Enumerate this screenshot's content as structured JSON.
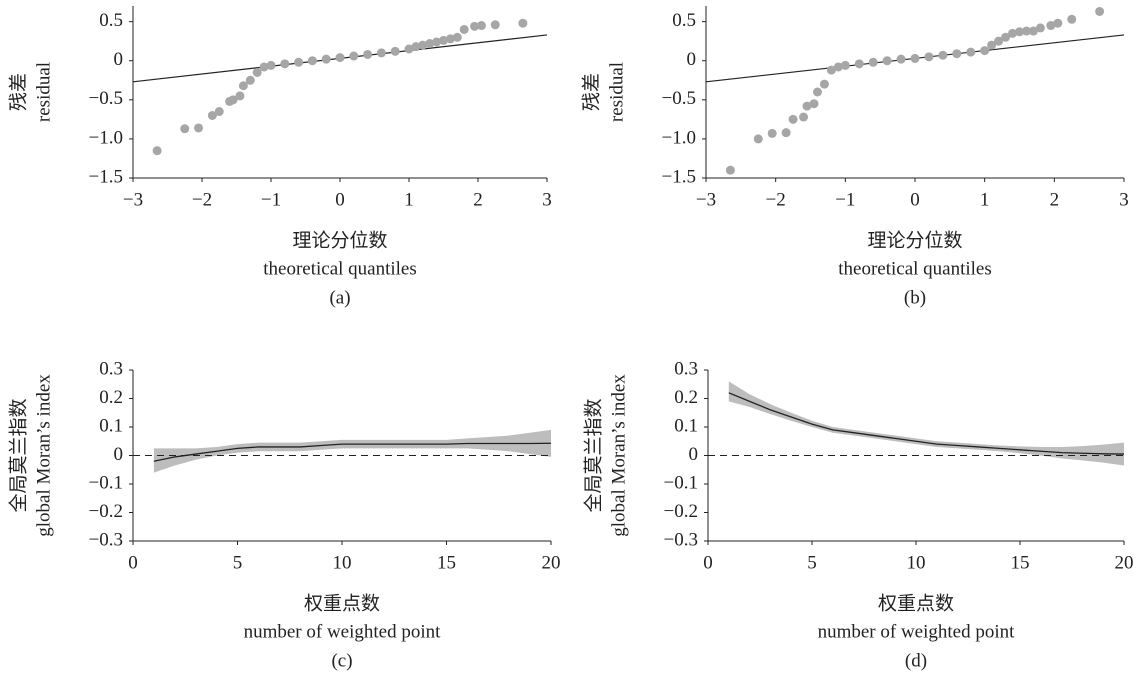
{
  "chart_data": [
    {
      "type": "scatter",
      "caption": "(a)",
      "y_label": [
        "残差",
        "residual"
      ],
      "x_label": [
        "理论分位数",
        "theoretical quantiles"
      ],
      "xlim": [
        -3,
        3
      ],
      "xticks": [
        {
          "value": -3,
          "label": "−3"
        },
        {
          "value": -2,
          "label": "−2"
        },
        {
          "value": -1,
          "label": "−1"
        },
        0,
        1,
        2,
        3
      ],
      "ylim": [
        -1.5,
        0.7
      ],
      "yticks": [
        0.5,
        0,
        {
          "value": -0.5,
          "label": "−0.5"
        },
        {
          "value": -1,
          "label": "−1.0"
        },
        {
          "value": -1.5,
          "label": "−1.5"
        }
      ],
      "color": "#a6a6a6",
      "line_color": "#222222",
      "x": [
        -2.65,
        -2.25,
        -2.05,
        -1.85,
        -1.75,
        -1.6,
        -1.55,
        -1.45,
        -1.4,
        -1.3,
        -1.2,
        -1.1,
        -1.0,
        -0.8,
        -0.6,
        -0.4,
        -0.2,
        0,
        0.2,
        0.4,
        0.6,
        0.8,
        1.0,
        1.1,
        1.2,
        1.3,
        1.4,
        1.5,
        1.6,
        1.7,
        1.8,
        1.95,
        2.05,
        2.25,
        2.65
      ],
      "values": [
        -1.15,
        -0.87,
        -0.86,
        -0.7,
        -0.65,
        -0.52,
        -0.5,
        -0.45,
        -0.32,
        -0.25,
        -0.15,
        -0.08,
        -0.06,
        -0.04,
        -0.02,
        0,
        0.02,
        0.04,
        0.06,
        0.08,
        0.1,
        0.12,
        0.15,
        0.18,
        0.2,
        0.22,
        0.24,
        0.26,
        0.28,
        0.3,
        0.4,
        0.44,
        0.45,
        0.46,
        0.48
      ],
      "reference_line": {
        "x": [
          -3,
          3
        ],
        "values": [
          -0.27,
          0.33
        ]
      }
    },
    {
      "type": "scatter",
      "caption": "(b)",
      "y_label": [
        "残差",
        "residual"
      ],
      "x_label": [
        "理论分位数",
        "theoretical quantiles"
      ],
      "xlim": [
        -3,
        3
      ],
      "xticks": [
        {
          "value": -3,
          "label": "−3"
        },
        {
          "value": -2,
          "label": "−2"
        },
        {
          "value": -1,
          "label": "−1"
        },
        0,
        1,
        2,
        3
      ],
      "ylim": [
        -1.5,
        0.7
      ],
      "yticks": [
        0.5,
        0,
        {
          "value": -0.5,
          "label": "−0.5"
        },
        {
          "value": -1,
          "label": "−1.0"
        },
        {
          "value": -1.5,
          "label": "−1.5"
        }
      ],
      "color": "#a6a6a6",
      "line_color": "#222222",
      "x": [
        -2.65,
        -2.25,
        -2.05,
        -1.85,
        -1.75,
        -1.6,
        -1.55,
        -1.45,
        -1.4,
        -1.3,
        -1.2,
        -1.1,
        -1.0,
        -0.8,
        -0.6,
        -0.4,
        -0.2,
        0,
        0.2,
        0.4,
        0.6,
        0.8,
        1.0,
        1.1,
        1.2,
        1.3,
        1.4,
        1.5,
        1.6,
        1.7,
        1.8,
        1.95,
        2.05,
        2.25,
        2.65
      ],
      "values": [
        -1.4,
        -1.0,
        -0.93,
        -0.92,
        -0.75,
        -0.72,
        -0.58,
        -0.55,
        -0.4,
        -0.3,
        -0.12,
        -0.08,
        -0.06,
        -0.04,
        -0.02,
        0,
        0.02,
        0.03,
        0.05,
        0.07,
        0.09,
        0.11,
        0.13,
        0.2,
        0.25,
        0.3,
        0.35,
        0.37,
        0.38,
        0.38,
        0.42,
        0.45,
        0.48,
        0.53,
        0.63
      ],
      "reference_line": {
        "x": [
          -3,
          3
        ],
        "values": [
          -0.27,
          0.33
        ]
      }
    },
    {
      "type": "line",
      "caption": "(c)",
      "y_label": [
        "全局莫兰指数",
        "global Moran’s index"
      ],
      "x_label": [
        "权重点数",
        "number of weighted point"
      ],
      "xlim": [
        0,
        20
      ],
      "xticks": [
        0,
        5,
        10,
        15,
        20
      ],
      "ylim": [
        -0.3,
        0.3
      ],
      "yticks": [
        0.3,
        0.2,
        0.1,
        0,
        {
          "value": -0.1,
          "label": "−0.1"
        },
        {
          "value": -0.2,
          "label": "−0.2"
        },
        {
          "value": -0.3,
          "label": "−0.3"
        }
      ],
      "color": "#222222",
      "band_color": "#bdbdbd",
      "reference_line": {
        "y": 0
      },
      "x": [
        1,
        2,
        3,
        4,
        5,
        6,
        7,
        8,
        9,
        10,
        11,
        12,
        13,
        14,
        15,
        16,
        17,
        18,
        19,
        20
      ],
      "values": [
        -0.02,
        -0.005,
        0.005,
        0.015,
        0.025,
        0.03,
        0.03,
        0.03,
        0.035,
        0.04,
        0.04,
        0.04,
        0.04,
        0.04,
        0.04,
        0.042,
        0.042,
        0.042,
        0.042,
        0.043
      ],
      "lower": [
        -0.06,
        -0.035,
        -0.015,
        0.0,
        0.01,
        0.015,
        0.015,
        0.015,
        0.02,
        0.025,
        0.025,
        0.025,
        0.025,
        0.025,
        0.025,
        0.025,
        0.02,
        0.015,
        0.005,
        -0.005
      ],
      "upper": [
        0.025,
        0.025,
        0.025,
        0.03,
        0.04,
        0.045,
        0.045,
        0.045,
        0.05,
        0.055,
        0.055,
        0.055,
        0.055,
        0.055,
        0.055,
        0.06,
        0.065,
        0.07,
        0.08,
        0.09
      ]
    },
    {
      "type": "line",
      "caption": "(d)",
      "y_label": [
        "全局莫兰指数",
        "global Moran’s index"
      ],
      "x_label": [
        "权重点数",
        "number of weighted point"
      ],
      "xlim": [
        0,
        20
      ],
      "xticks": [
        0,
        5,
        10,
        15,
        20
      ],
      "ylim": [
        -0.3,
        0.3
      ],
      "yticks": [
        0.3,
        0.2,
        0.1,
        0,
        {
          "value": -0.1,
          "label": "−0.1"
        },
        {
          "value": -0.2,
          "label": "−0.2"
        },
        {
          "value": -0.3,
          "label": "−0.3"
        }
      ],
      "color": "#222222",
      "band_color": "#bdbdbd",
      "reference_line": {
        "y": 0
      },
      "x": [
        1,
        2,
        3,
        4,
        5,
        6,
        7,
        8,
        9,
        10,
        11,
        12,
        13,
        14,
        15,
        16,
        17,
        18,
        19,
        20
      ],
      "values": [
        0.22,
        0.19,
        0.16,
        0.135,
        0.11,
        0.09,
        0.08,
        0.07,
        0.06,
        0.05,
        0.04,
        0.035,
        0.03,
        0.025,
        0.02,
        0.015,
        0.01,
        0.008,
        0.006,
        0.005
      ],
      "lower": [
        0.19,
        0.17,
        0.145,
        0.122,
        0.1,
        0.08,
        0.07,
        0.06,
        0.05,
        0.04,
        0.03,
        0.025,
        0.02,
        0.015,
        0.008,
        0.0,
        -0.01,
        -0.017,
        -0.025,
        -0.035
      ],
      "upper": [
        0.26,
        0.215,
        0.18,
        0.15,
        0.122,
        0.1,
        0.09,
        0.08,
        0.07,
        0.06,
        0.05,
        0.045,
        0.04,
        0.035,
        0.032,
        0.03,
        0.03,
        0.033,
        0.038,
        0.045
      ]
    }
  ]
}
